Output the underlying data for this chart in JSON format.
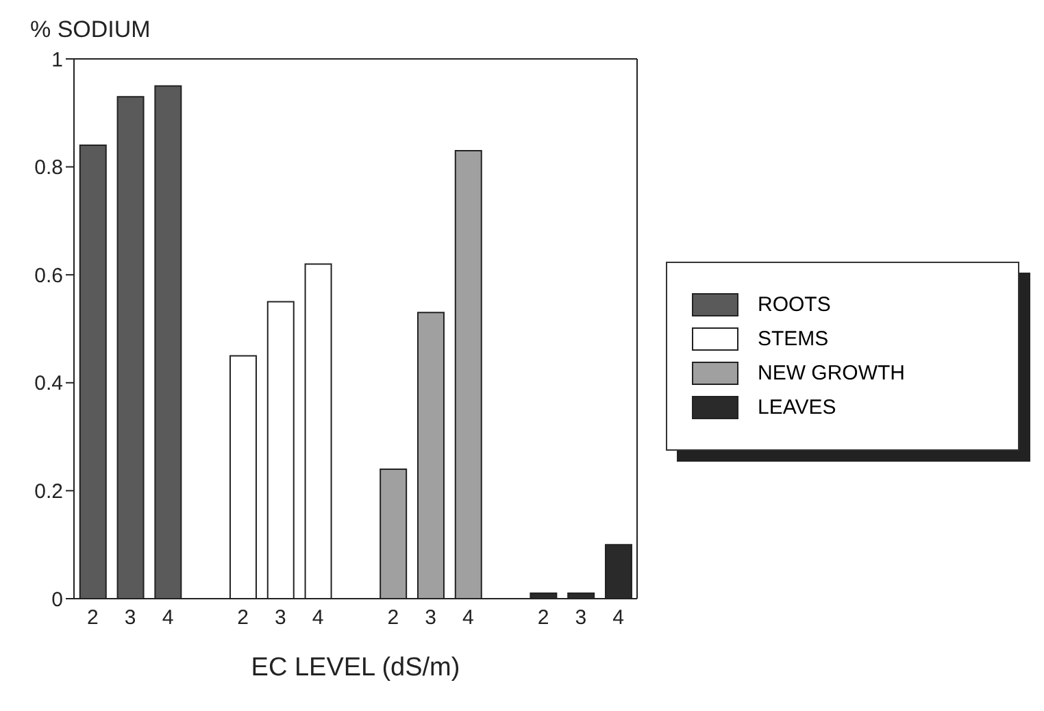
{
  "chart_data": {
    "type": "bar",
    "ylabel": "% SODIUM",
    "xlabel": "EC LEVEL (dS/m)",
    "categories": [
      "2",
      "3",
      "4",
      null,
      "2",
      "3",
      "4",
      null,
      "2",
      "3",
      "4",
      null,
      "2",
      "3",
      "4"
    ],
    "series": [
      {
        "name": "ROOTS",
        "color": "#5a5a5a",
        "values": [
          0.84,
          0.93,
          0.95,
          null,
          null,
          null,
          null,
          null,
          null,
          null,
          null,
          null,
          null,
          null,
          null
        ]
      },
      {
        "name": "STEMS",
        "color": "#ffffff",
        "values": [
          null,
          null,
          null,
          null,
          0.45,
          0.55,
          0.62,
          null,
          null,
          null,
          null,
          null,
          null,
          null,
          null
        ]
      },
      {
        "name": "NEW GROWTH",
        "color": "#a0a0a0",
        "values": [
          null,
          null,
          null,
          null,
          null,
          null,
          null,
          null,
          0.24,
          0.53,
          0.83,
          null,
          null,
          null,
          null
        ]
      },
      {
        "name": "LEAVES",
        "color": "#2a2a2a",
        "values": [
          null,
          null,
          null,
          null,
          null,
          null,
          null,
          null,
          null,
          null,
          null,
          null,
          0.01,
          0.01,
          0.1
        ]
      }
    ],
    "ylim": [
      0,
      1
    ],
    "yticks": [
      0,
      0.2,
      0.4,
      0.6,
      0.8,
      1
    ],
    "grid": false,
    "legend": "right"
  }
}
